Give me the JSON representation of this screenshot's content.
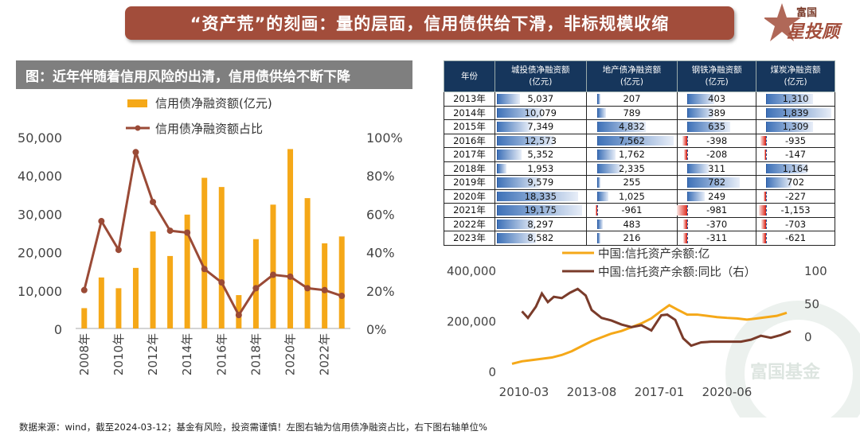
{
  "title": "“资产荒”的刻画：量的层面，信用债供给下滑，非标规模收缩",
  "logo": {
    "line1": "富国",
    "line2": "星投顾"
  },
  "left_panel_title": "图：近年伴随着信用风险的出清，信用债供给不断下降",
  "watermark": "富国基金",
  "footer": "数据来源：wind，截至2024-03-12；基金有风险，投资需谨慎！左图右轴为信用债净融资占比，右下图右轴单位%",
  "colors": {
    "orange": "#f5a818",
    "brown": "#9a4a36",
    "dark_brown": "#7a3b2a",
    "title_bg": "#a24d3b",
    "header": "#16365c"
  },
  "chart_data": [
    {
      "type": "bar+line",
      "legend": [
        "信用债净融资额(亿元)",
        "信用债净融资额占比"
      ],
      "categories": [
        "2008年",
        "2009年",
        "2010年",
        "2011年",
        "2012年",
        "2013年",
        "2014年",
        "2015年",
        "2016年",
        "2017年",
        "2018年",
        "2019年",
        "2020年",
        "2021年",
        "2022年",
        "2023年"
      ],
      "x_tick_labels": [
        "2008年",
        "2010年",
        "2012年",
        "2014年",
        "2016年",
        "2018年",
        "2020年",
        "2022年"
      ],
      "bar_values": [
        5300,
        13300,
        10500,
        15800,
        25300,
        18900,
        29700,
        39300,
        36900,
        8700,
        23300,
        32300,
        46800,
        34000,
        22200,
        24000
      ],
      "line_values": [
        20,
        56,
        41,
        92,
        66,
        51,
        50,
        31,
        24,
        7,
        21,
        28,
        27,
        21,
        20,
        17
      ],
      "y_left_ticks": [
        "50,000",
        "40,000",
        "30,000",
        "20,000",
        "10,000",
        "0"
      ],
      "y_right_ticks": [
        "100%",
        "80%",
        "60%",
        "40%",
        "20%",
        "0%"
      ],
      "ylim_left": [
        0,
        50000
      ],
      "ylim_right": [
        0,
        100
      ]
    },
    {
      "type": "table",
      "headers": [
        "年份",
        "城投债净融资额\n(亿元)",
        "地产债净融资额\n(亿元)",
        "钢铁净融资额\n(亿元)",
        "煤炭净融资额\n(亿元)"
      ],
      "rows": [
        [
          "2013年",
          5037,
          207,
          403,
          1310
        ],
        [
          "2014年",
          10079,
          789,
          389,
          1839
        ],
        [
          "2015年",
          7349,
          4832,
          635,
          1309
        ],
        [
          "2016年",
          12573,
          7562,
          -398,
          -935
        ],
        [
          "2017年",
          5352,
          1762,
          -208,
          -147
        ],
        [
          "2018年",
          1953,
          2335,
          311,
          1164
        ],
        [
          "2019年",
          9579,
          255,
          782,
          702
        ],
        [
          "2020年",
          18335,
          1025,
          249,
          -227
        ],
        [
          "2021年",
          19175,
          -961,
          -981,
          -1153
        ],
        [
          "2022年",
          8297,
          483,
          -370,
          -703
        ],
        [
          "2023年",
          8582,
          216,
          -311,
          -621
        ]
      ]
    },
    {
      "type": "line",
      "legend": [
        "中国:信托资产余额:亿",
        "中国:信托资产余额:同比（右）"
      ],
      "x_tick_labels": [
        "2010-03",
        "2013-08",
        "2017-01",
        "2020-06"
      ],
      "y_left_ticks": [
        "400,000",
        "200,000",
        "0"
      ],
      "y_right_ticks": [
        "100",
        "50",
        "0"
      ],
      "ylim_left": [
        0,
        400000
      ],
      "ylim_right": [
        -30,
        100
      ],
      "series": [
        {
          "name": "中国:信托资产余额:亿",
          "x": [
            2010.0,
            2010.5,
            2011.0,
            2011.5,
            2012.0,
            2012.5,
            2013.0,
            2013.5,
            2014.0,
            2014.5,
            2015.0,
            2015.5,
            2016.0,
            2016.5,
            2017.0,
            2017.5,
            2017.9,
            2018.3,
            2018.8,
            2019.3,
            2019.8,
            2020.3,
            2020.8,
            2021.3,
            2021.8,
            2022.3,
            2022.8,
            2023.3,
            2023.8
          ],
          "values": [
            30000,
            40000,
            45000,
            50000,
            55000,
            65000,
            80000,
            100000,
            120000,
            135000,
            150000,
            160000,
            175000,
            190000,
            210000,
            240000,
            262000,
            245000,
            225000,
            225000,
            220000,
            215000,
            212000,
            210000,
            205000,
            210000,
            215000,
            220000,
            232000
          ]
        },
        {
          "name": "中国:信托资产余额:同比（右）",
          "x": [
            2010.5,
            2010.8,
            2011.2,
            2011.5,
            2011.8,
            2012.1,
            2012.5,
            2012.9,
            2013.3,
            2013.7,
            2014.0,
            2014.5,
            2015.0,
            2015.5,
            2016.0,
            2016.5,
            2017.0,
            2017.5,
            2017.8,
            2018.2,
            2018.6,
            2019.0,
            2019.5,
            2020.0,
            2020.5,
            2021.0,
            2021.5,
            2022.0,
            2022.5,
            2023.0,
            2023.5,
            2024.0
          ],
          "values": [
            38,
            28,
            45,
            65,
            52,
            60,
            58,
            66,
            72,
            62,
            40,
            28,
            24,
            18,
            14,
            17,
            9,
            32,
            33,
            25,
            -3,
            -14,
            -9,
            -8,
            -8,
            -8,
            -8,
            -5,
            1,
            -2,
            2,
            8
          ]
        }
      ]
    }
  ]
}
